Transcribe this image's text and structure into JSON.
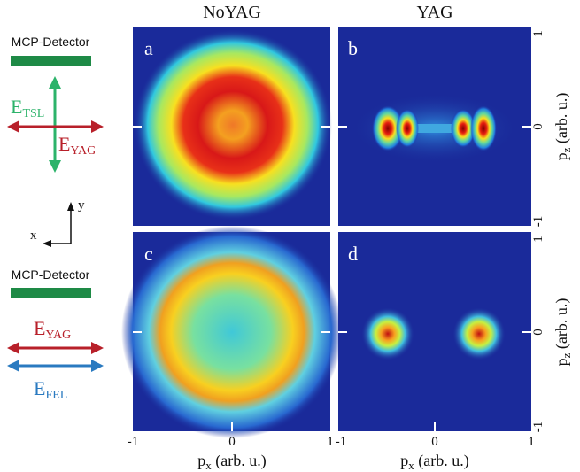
{
  "column_titles": [
    "NoYAG",
    "YAG"
  ],
  "panels": [
    "a",
    "b",
    "c",
    "d"
  ],
  "x_ticks": [
    "-1",
    "0",
    "1"
  ],
  "y_ticks": [
    "1",
    "0",
    "-1"
  ],
  "x_label": {
    "symbol": "p",
    "sub": "x",
    "unit": " (arb. u.)"
  },
  "y_label": {
    "symbol": "p",
    "sub": "z",
    "unit": " (arb. u.)"
  },
  "diagram": {
    "detector": "MCP-Detector",
    "top_fields": [
      {
        "symbol": "E",
        "sub": "TSL"
      },
      {
        "symbol": "E",
        "sub": "YAG"
      }
    ],
    "bottom_fields": [
      {
        "symbol": "E",
        "sub": "YAG"
      },
      {
        "symbol": "E",
        "sub": "FEL"
      }
    ],
    "axes": [
      "x",
      "y"
    ]
  }
}
